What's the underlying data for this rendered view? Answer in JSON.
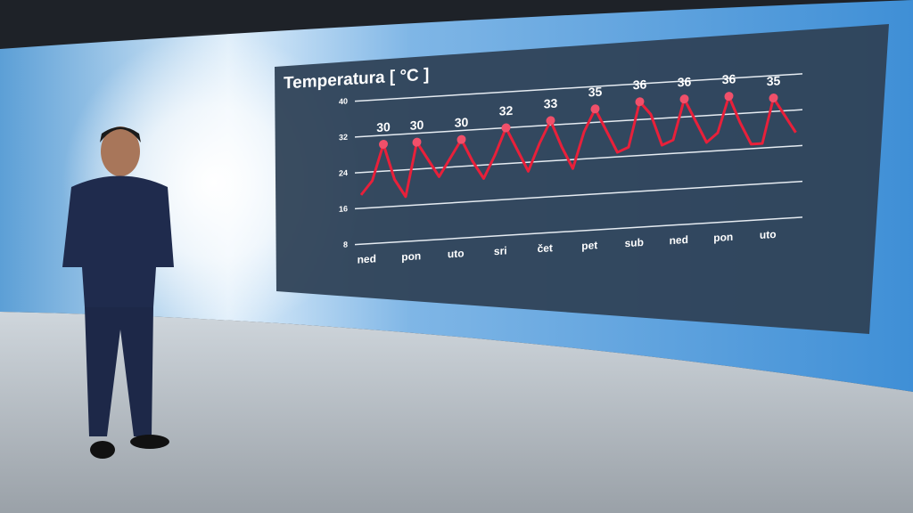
{
  "chart_data": {
    "type": "line",
    "title": "Temperatura [ °C ]",
    "categories": [
      "ned",
      null,
      null,
      null,
      "pon",
      null,
      null,
      null,
      "uto",
      null,
      null,
      null,
      "sri",
      null,
      null,
      null,
      "čet",
      null,
      null,
      null,
      "pet",
      null,
      null,
      null,
      "sub",
      null,
      null,
      null,
      "ned",
      null,
      null,
      null,
      "pon",
      null,
      null,
      null,
      "uto",
      null,
      null,
      null
    ],
    "series": [
      {
        "color": "#e8203a",
        "values": [
          19,
          22,
          30,
          22,
          18,
          30,
          26,
          22,
          26,
          30,
          25,
          21,
          26,
          32,
          27,
          22,
          28,
          33,
          27,
          22,
          30,
          35,
          30,
          25,
          26,
          36,
          33,
          26,
          27,
          36,
          31,
          26,
          28,
          36,
          30,
          25,
          25,
          35,
          31,
          27
        ]
      }
    ],
    "daily_max": {
      "color": "#f0506a",
      "values": [
        30,
        30,
        30,
        32,
        33,
        35,
        36,
        36,
        36,
        35
      ]
    },
    "ylim": [
      8,
      40
    ],
    "yticks": [
      8,
      16,
      24,
      32,
      40
    ],
    "grid": true
  }
}
